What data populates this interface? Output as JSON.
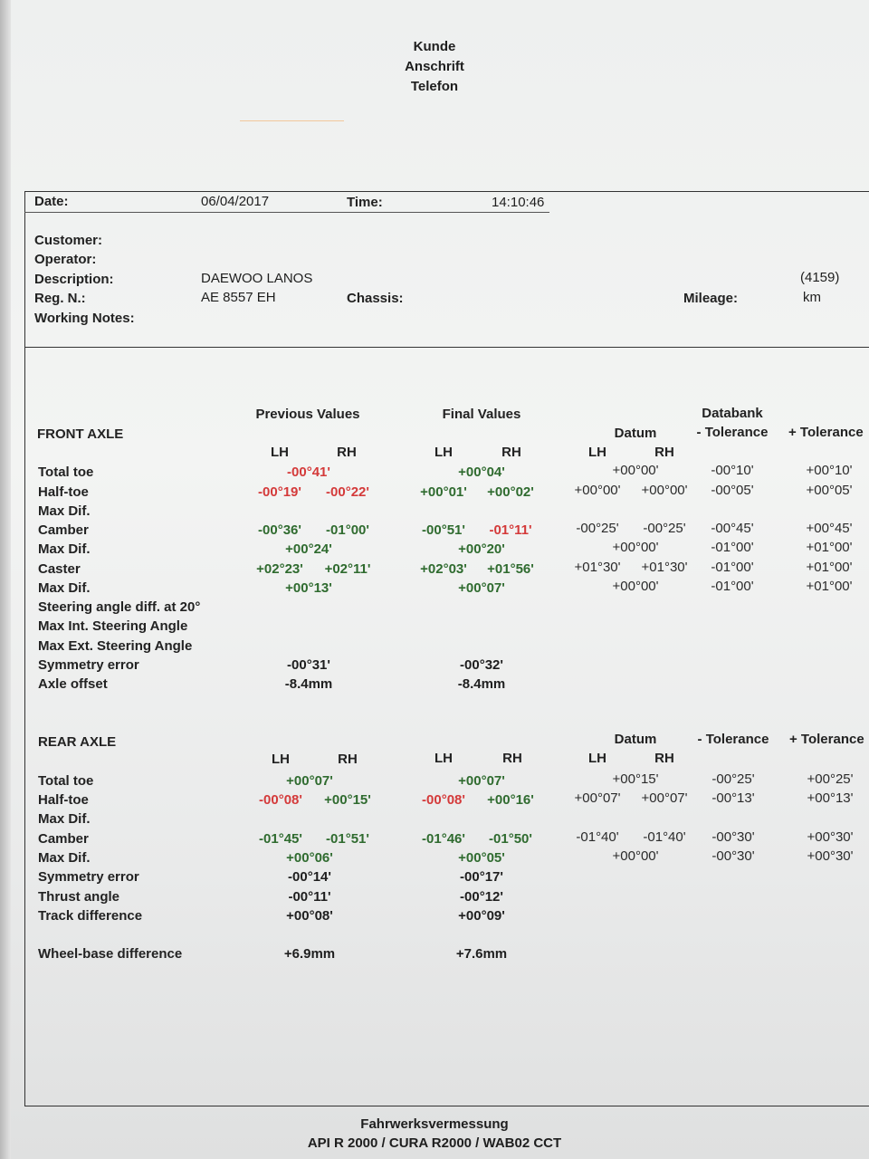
{
  "header": {
    "lines": [
      "Kunde",
      "Anschrift",
      "Telefon"
    ]
  },
  "info": {
    "date_label": "Date:",
    "date_value": "06/04/2017",
    "time_label": "Time:",
    "time_value": "14:10:46",
    "customer_label": "Customer:",
    "operator_label": "Operator:",
    "description_label": "Description:",
    "description_value": "DAEWOO LANOS",
    "description_code": "(4159)",
    "reg_label": "Reg. N.:",
    "reg_value": "AE 8557 EH",
    "chassis_label": "Chassis:",
    "mileage_label": "Mileage:",
    "mileage_unit": "km",
    "notes_label": "Working Notes:"
  },
  "columns": {
    "previous": "Previous Values",
    "final": "Final Values",
    "databank": "Databank",
    "datum": "Datum",
    "minus_tol": "- Tolerance",
    "plus_tol": "+ Tolerance",
    "lh": "LH",
    "rh": "RH"
  },
  "front": {
    "title": "FRONT AXLE",
    "rows": [
      {
        "label": "Total toe",
        "prev_c": "-00°41'",
        "prev_c_s": "r",
        "fin_c": "+00°04'",
        "fin_c_s": "g",
        "d_c": "+00°00'",
        "tm": "-00°10'",
        "tp": "+00°10'"
      },
      {
        "label": "Half-toe",
        "prev_l": "-00°19'",
        "prev_l_s": "r",
        "prev_r": "-00°22'",
        "prev_r_s": "r",
        "fin_l": "+00°01'",
        "fin_l_s": "g",
        "fin_r": "+00°02'",
        "fin_r_s": "g",
        "d_l": "+00°00'",
        "d_r": "+00°00'",
        "tm": "-00°05'",
        "tp": "+00°05'"
      },
      {
        "label": "Max Dif."
      },
      {
        "label": "Camber",
        "prev_l": "-00°36'",
        "prev_l_s": "g",
        "prev_r": "-01°00'",
        "prev_r_s": "g",
        "fin_l": "-00°51'",
        "fin_l_s": "g",
        "fin_r": "-01°11'",
        "fin_r_s": "r",
        "d_l": "-00°25'",
        "d_r": "-00°25'",
        "tm": "-00°45'",
        "tp": "+00°45'"
      },
      {
        "label": "Max Dif.",
        "prev_c": "+00°24'",
        "prev_c_s": "g",
        "fin_c": "+00°20'",
        "fin_c_s": "g",
        "d_c": "+00°00'",
        "tm": "-01°00'",
        "tp": "+01°00'"
      },
      {
        "label": "Caster",
        "prev_l": "+02°23'",
        "prev_l_s": "g",
        "prev_r": "+02°11'",
        "prev_r_s": "g",
        "fin_l": "+02°03'",
        "fin_l_s": "g",
        "fin_r": "+01°56'",
        "fin_r_s": "g",
        "d_l": "+01°30'",
        "d_r": "+01°30'",
        "tm": "-01°00'",
        "tp": "+01°00'"
      },
      {
        "label": "Max Dif.",
        "prev_c": "+00°13'",
        "prev_c_s": "g",
        "fin_c": "+00°07'",
        "fin_c_s": "g",
        "d_c": "+00°00'",
        "tm": "-01°00'",
        "tp": "+01°00'"
      },
      {
        "label": "Steering angle diff. at 20°"
      },
      {
        "label": "Max Int. Steering Angle"
      },
      {
        "label": "Max Ext. Steering Angle"
      },
      {
        "label": "Symmetry error",
        "prev_c": "-00°31'",
        "prev_c_s": "k",
        "fin_c": "-00°32'",
        "fin_c_s": "k"
      },
      {
        "label": "Axle offset",
        "prev_c": "-8.4mm",
        "prev_c_s": "k",
        "fin_c": "-8.4mm",
        "fin_c_s": "k"
      }
    ]
  },
  "rear": {
    "title": "REAR AXLE",
    "rows": [
      {
        "label": "Total toe",
        "prev_c": "+00°07'",
        "prev_c_s": "g",
        "fin_c": "+00°07'",
        "fin_c_s": "g",
        "d_c": "+00°15'",
        "tm": "-00°25'",
        "tp": "+00°25'"
      },
      {
        "label": "Half-toe",
        "prev_l": "-00°08'",
        "prev_l_s": "r",
        "prev_r": "+00°15'",
        "prev_r_s": "g",
        "fin_l": "-00°08'",
        "fin_l_s": "r",
        "fin_r": "+00°16'",
        "fin_r_s": "g",
        "d_l": "+00°07'",
        "d_r": "+00°07'",
        "tm": "-00°13'",
        "tp": "+00°13'"
      },
      {
        "label": "Max Dif."
      },
      {
        "label": "Camber",
        "prev_l": "-01°45'",
        "prev_l_s": "g",
        "prev_r": "-01°51'",
        "prev_r_s": "g",
        "fin_l": "-01°46'",
        "fin_l_s": "g",
        "fin_r": "-01°50'",
        "fin_r_s": "g",
        "d_l": "-01°40'",
        "d_r": "-01°40'",
        "tm": "-00°30'",
        "tp": "+00°30'"
      },
      {
        "label": "Max Dif.",
        "prev_c": "+00°06'",
        "prev_c_s": "g",
        "fin_c": "+00°05'",
        "fin_c_s": "g",
        "d_c": "+00°00'",
        "tm": "-00°30'",
        "tp": "+00°30'"
      },
      {
        "label": "Symmetry error",
        "prev_c": "-00°14'",
        "prev_c_s": "k",
        "fin_c": "-00°17'",
        "fin_c_s": "k"
      },
      {
        "label": "Thrust angle",
        "prev_c": "-00°11'",
        "prev_c_s": "k",
        "fin_c": "-00°12'",
        "fin_c_s": "k"
      },
      {
        "label": "Track difference",
        "prev_c": "+00°08'",
        "prev_c_s": "k",
        "fin_c": "+00°09'",
        "fin_c_s": "k"
      },
      {
        "label": "Wheel-base difference",
        "prev_c": "+6.9mm",
        "prev_c_s": "k",
        "fin_c": "+7.6mm",
        "fin_c_s": "k"
      }
    ]
  },
  "footer": {
    "line1": "Fahrwerksvermessung",
    "line2": "API R 2000 / CURA R2000 / WAB02 CCT"
  }
}
